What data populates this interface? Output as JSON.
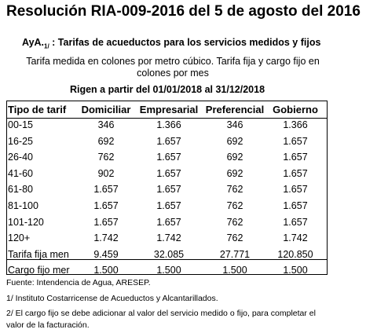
{
  "header": {
    "title": "Resolución RIA-009-2016 del 5 de agosto del 2016",
    "subtitle_prefix": "AyA.",
    "subtitle_note": "1/",
    "subtitle_rest": " : Tarifas de acueductos para los servicios medidos y fijos",
    "description": "Tarifa medida en colones por metro cúbico. Tarifa fija y cargo fijo en colones por mes",
    "validity": "Rigen a partir del 01/01/2018 al 31/12/2018"
  },
  "table": {
    "columns": [
      "Tipo de tarif",
      "Domiciliar",
      "Empresarial",
      "Preferencial",
      "Gobierno"
    ],
    "rows": [
      [
        "00-15",
        "346",
        "1.366",
        "346",
        "1.366"
      ],
      [
        "16-25",
        "692",
        "1.657",
        "692",
        "1.657"
      ],
      [
        "26-40",
        "762",
        "1.657",
        "692",
        "1.657"
      ],
      [
        "41-60",
        "902",
        "1.657",
        "692",
        "1.657"
      ],
      [
        "61-80",
        "1.657",
        "1.657",
        "762",
        "1.657"
      ],
      [
        "81-100",
        "1.657",
        "1.657",
        "762",
        "1.657"
      ],
      [
        "101-120",
        "1.657",
        "1.657",
        "762",
        "1.657"
      ],
      [
        "120+",
        "1.742",
        "1.742",
        "762",
        "1.742"
      ],
      [
        "Tarifa fija men",
        "9.459",
        "32.085",
        "27.771",
        "120.850"
      ],
      [
        "Cargo fijo mer",
        "1.500",
        "1.500",
        "1.500",
        "1.500"
      ]
    ]
  },
  "footer": {
    "notes": [
      "Fuente: Intendencia de Agua, ARESEP.",
      "1/ Instituto Costarricense de Acueductos y Alcantarillados.",
      "2/ El cargo fijo se debe adicionar al valor del servicio medido o fijo, para completar el",
      "valor de la facturación."
    ]
  }
}
